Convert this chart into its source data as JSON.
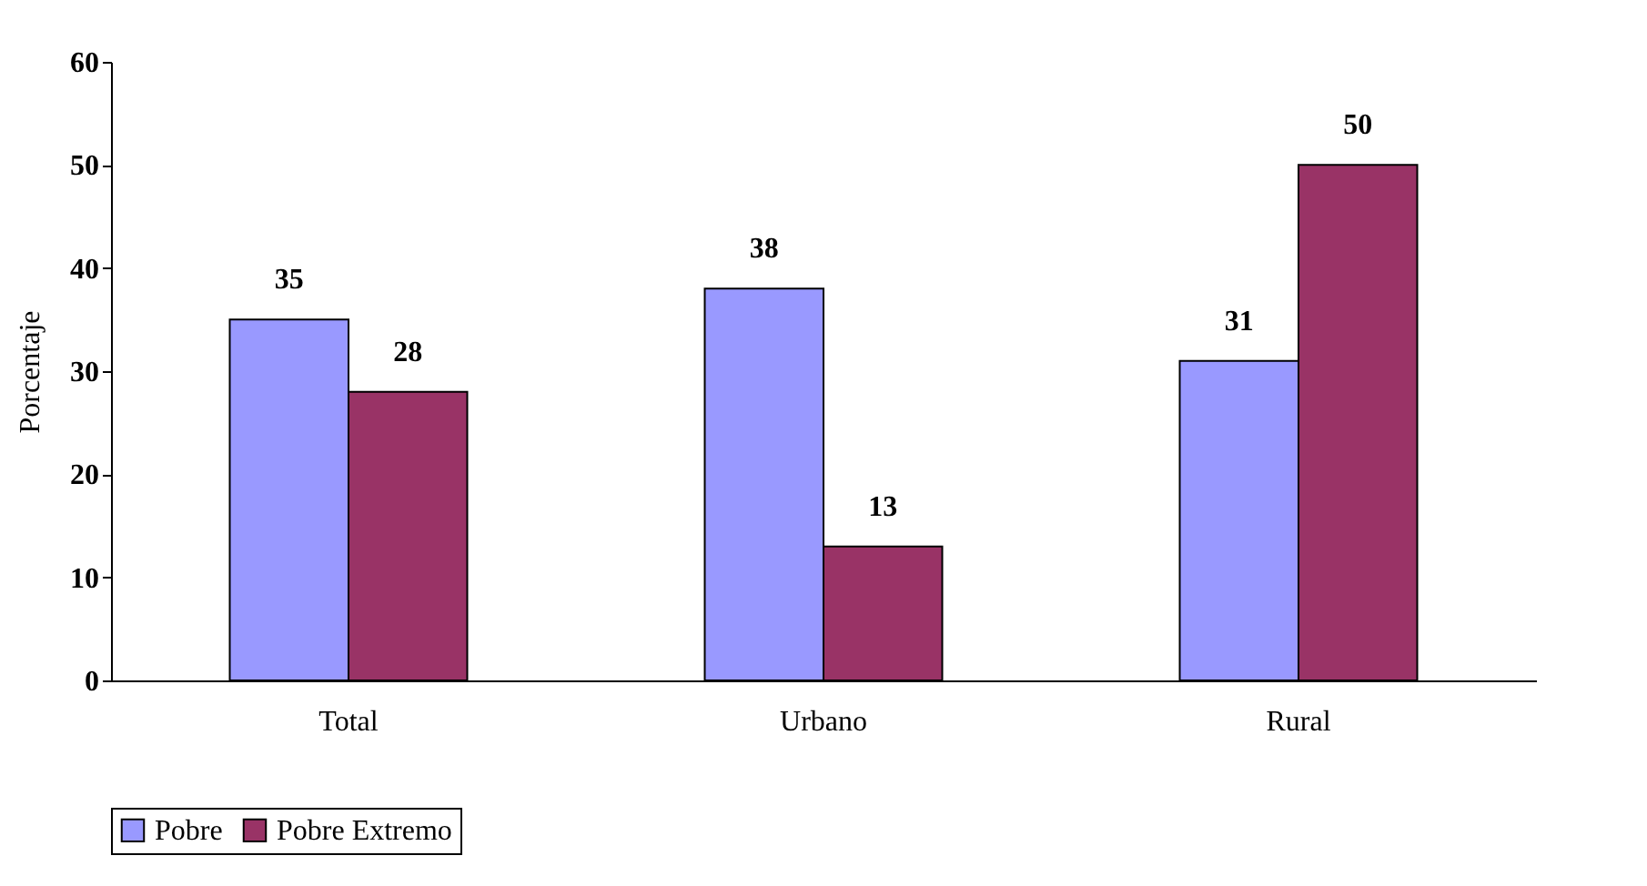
{
  "chart_data": {
    "type": "bar",
    "ylabel": "Porcentaje",
    "categories": [
      "Total",
      "Urbano",
      "Rural"
    ],
    "series": [
      {
        "name": "Pobre",
        "color": "#9999ff",
        "values": [
          35,
          38,
          31
        ]
      },
      {
        "name": "Pobre Extremo",
        "color": "#993366",
        "values": [
          28,
          13,
          50
        ]
      }
    ],
    "ylim": [
      0,
      60
    ],
    "yticks": [
      0,
      10,
      20,
      30,
      40,
      50,
      60
    ],
    "grid": false,
    "legend": "bottom",
    "data_labels": true
  }
}
